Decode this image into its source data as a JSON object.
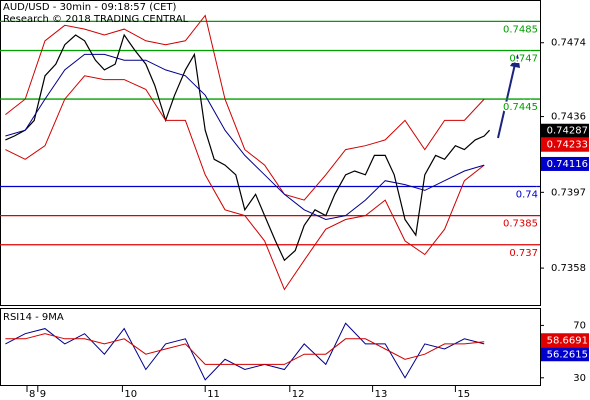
{
  "chart_data": [
    {
      "type": "line",
      "title": "AUD/USD - 30min - 09:18:57 (CET)",
      "subtitle": "Research © 2018 TRADING CENTRAL",
      "xlim": [
        0,
        300
      ],
      "xticks": [
        {
          "value": 15,
          "label": "8"
        },
        {
          "value": 21,
          "label": "9"
        },
        {
          "value": 68,
          "label": "10"
        },
        {
          "value": 114,
          "label": "11"
        },
        {
          "value": 161,
          "label": "12"
        },
        {
          "value": 207,
          "label": "13"
        },
        {
          "value": 253,
          "label": "15"
        }
      ],
      "ylim": [
        0.7339,
        0.7496
      ],
      "yticks": [
        0.7474,
        0.7436,
        0.7397,
        0.7358
      ],
      "series": [
        {
          "color": "#000000",
          "x": [
            3,
            8,
            14,
            19,
            25,
            31,
            36,
            42,
            47,
            53,
            58,
            64,
            69,
            75,
            81,
            86,
            92,
            97,
            103,
            108,
            114,
            119,
            125,
            131,
            136,
            142,
            147,
            153,
            158,
            164,
            169,
            175,
            181,
            186,
            192,
            197,
            203,
            208,
            214,
            219,
            225,
            231,
            236,
            242,
            247,
            253,
            258,
            264,
            269,
            272
          ],
          "values": [
            0.7424,
            0.7426,
            0.7429,
            0.7434,
            0.7457,
            0.7463,
            0.7473,
            0.7478,
            0.7475,
            0.7465,
            0.746,
            0.7463,
            0.7478,
            0.747,
            0.7463,
            0.7452,
            0.7434,
            0.7447,
            0.746,
            0.7468,
            0.7429,
            0.7414,
            0.7411,
            0.7406,
            0.7388,
            0.7396,
            0.7385,
            0.7372,
            0.7362,
            0.7367,
            0.738,
            0.7388,
            0.7385,
            0.7396,
            0.7406,
            0.7408,
            0.7406,
            0.7416,
            0.7416,
            0.7406,
            0.7383,
            0.7375,
            0.7406,
            0.7416,
            0.7414,
            0.7421,
            0.7419,
            0.7424,
            0.7426,
            0.7429
          ]
        },
        {
          "color": "#d00000",
          "x": [
            3,
            14,
            25,
            36,
            47,
            58,
            69,
            81,
            92,
            103,
            114,
            125,
            136,
            147,
            158,
            169,
            181,
            192,
            203,
            214,
            225,
            236,
            247,
            258,
            269
          ],
          "values": [
            0.7437,
            0.7445,
            0.7475,
            0.7483,
            0.7481,
            0.7478,
            0.7481,
            0.7475,
            0.7473,
            0.7475,
            0.7488,
            0.7445,
            0.7419,
            0.7411,
            0.7396,
            0.7393,
            0.7406,
            0.7419,
            0.7421,
            0.7424,
            0.7434,
            0.7419,
            0.7434,
            0.7434,
            0.7445
          ]
        },
        {
          "color": "#d00000",
          "x": [
            3,
            14,
            25,
            36,
            47,
            58,
            69,
            81,
            92,
            103,
            114,
            125,
            136,
            147,
            158,
            169,
            181,
            192,
            203,
            214,
            225,
            236,
            247,
            258,
            269
          ],
          "values": [
            0.7419,
            0.7414,
            0.7421,
            0.7445,
            0.7457,
            0.7455,
            0.7455,
            0.745,
            0.7434,
            0.7434,
            0.7406,
            0.7388,
            0.7385,
            0.7372,
            0.7347,
            0.7362,
            0.7378,
            0.7383,
            0.7385,
            0.7393,
            0.7372,
            0.7365,
            0.7378,
            0.7403,
            0.7411
          ]
        },
        {
          "color": "#00008b",
          "x": [
            3,
            14,
            25,
            36,
            47,
            58,
            69,
            81,
            92,
            103,
            114,
            125,
            136,
            147,
            158,
            169,
            181,
            192,
            203,
            214,
            225,
            236,
            247,
            258,
            269
          ],
          "values": [
            0.7426,
            0.7429,
            0.7445,
            0.746,
            0.7468,
            0.7468,
            0.7465,
            0.7465,
            0.746,
            0.7457,
            0.7447,
            0.7429,
            0.7416,
            0.7406,
            0.7396,
            0.7388,
            0.7383,
            0.7385,
            0.7393,
            0.7403,
            0.7401,
            0.7398,
            0.7403,
            0.7408,
            0.7411
          ]
        }
      ],
      "levels": [
        {
          "value": 0.7485,
          "color": "#00a000"
        },
        {
          "value": 0.747,
          "color": "#00a000"
        },
        {
          "value": 0.7445,
          "color": "#00a000"
        },
        {
          "value": 0.74,
          "color": "#0000cc"
        },
        {
          "value": 0.7385,
          "color": "#e00000"
        },
        {
          "value": 0.737,
          "color": "#e00000"
        }
      ],
      "markers": [
        {
          "value": 0.74287,
          "color": "#000000"
        },
        {
          "value": 0.74233,
          "color": "#e00000"
        },
        {
          "value": 0.74116,
          "color": "#0000cc"
        }
      ]
    },
    {
      "type": "line",
      "title": "RSI14 - 9MA",
      "xlim": [
        0,
        300
      ],
      "ylim": [
        24.5,
        83.3
      ],
      "yticks": [
        30,
        50,
        70
      ],
      "series": [
        {
          "color": "#00008b",
          "x": [
            3,
            14,
            25,
            36,
            47,
            58,
            69,
            81,
            92,
            103,
            114,
            125,
            136,
            147,
            158,
            169,
            181,
            192,
            203,
            214,
            225,
            236,
            247,
            258,
            269
          ],
          "values": [
            55.9,
            63.7,
            67.6,
            55.9,
            63.7,
            48.0,
            67.6,
            36.3,
            55.9,
            59.8,
            28.4,
            44.1,
            36.3,
            40.2,
            36.3,
            55.9,
            40.2,
            71.6,
            55.9,
            55.9,
            30.0,
            55.9,
            52.0,
            59.8,
            55.9
          ]
        },
        {
          "color": "#d00000",
          "x": [
            3,
            14,
            25,
            36,
            47,
            58,
            69,
            81,
            92,
            103,
            114,
            125,
            136,
            147,
            158,
            169,
            181,
            192,
            203,
            214,
            225,
            236,
            247,
            258,
            269
          ],
          "values": [
            59.8,
            59.8,
            63.7,
            59.8,
            59.8,
            55.9,
            59.8,
            48.0,
            52.0,
            55.9,
            40.2,
            40.2,
            40.2,
            40.2,
            40.2,
            48.0,
            48.0,
            59.8,
            59.8,
            52.0,
            44.1,
            48.0,
            55.9,
            55.9,
            57.5
          ]
        }
      ],
      "markers": [
        {
          "value": 58.6691,
          "color": "#e00000"
        },
        {
          "value": 56.2615,
          "color": "#0000cc"
        }
      ]
    }
  ]
}
